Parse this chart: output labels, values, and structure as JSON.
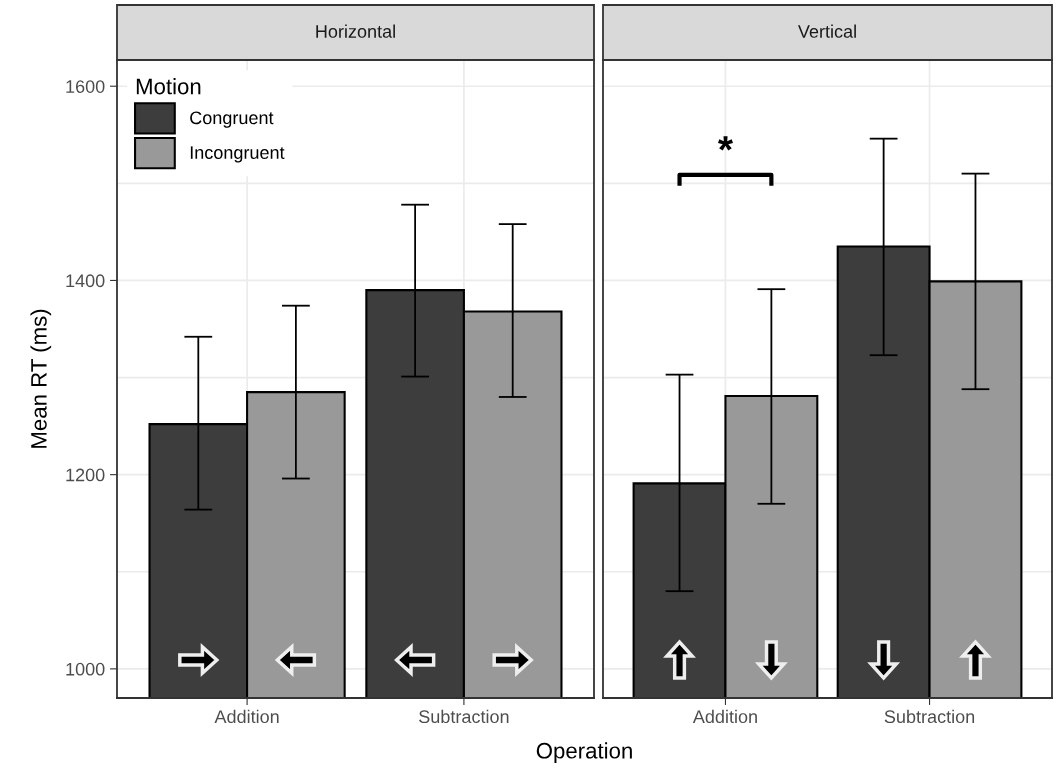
{
  "chart_data": [
    {
      "type": "bar",
      "title": "Horizontal",
      "xlabel": "Operation",
      "ylabel": "Mean RT (ms)",
      "legend_title": "Motion",
      "legend": "top left",
      "grid": true,
      "categories": [
        "Addition",
        "Subtraction"
      ],
      "ylim": [
        970,
        1627
      ],
      "yticks": [
        1000,
        {
          "value": 1100,
          "label": null
        },
        1200,
        {
          "value": 1300,
          "label": null
        },
        1400,
        {
          "value": 1500,
          "label": null
        },
        1600
      ],
      "series": [
        {
          "name": "Congruent",
          "color": "#3d3d3d",
          "values": [
            1252,
            1390
          ],
          "errors": [
            [
              1164,
              1342
            ],
            [
              1301,
              1478
            ]
          ]
        },
        {
          "name": "Incongruent",
          "color": "#999999",
          "values": [
            1285,
            1368
          ],
          "errors": [
            [
              1196,
              1374
            ],
            [
              1280,
              1458
            ]
          ]
        }
      ]
    },
    {
      "type": "bar",
      "title": "Vertical",
      "grid": true,
      "tick_labels": "x",
      "categories": [
        "Addition",
        "Subtraction"
      ],
      "ylim": [
        970,
        1627
      ],
      "yticks": [
        1000,
        {
          "value": 1100,
          "label": null
        },
        1200,
        {
          "value": 1300,
          "label": null
        },
        1400,
        {
          "value": 1500,
          "label": null
        },
        1600
      ],
      "annotations": [
        "*"
      ],
      "series": [
        {
          "color": "#3d3d3d",
          "values": [
            1191,
            1435
          ],
          "errors": [
            [
              1080,
              1303
            ],
            [
              1323,
              1546
            ]
          ]
        },
        {
          "color": "#999999",
          "values": [
            1281,
            1399
          ],
          "errors": [
            [
              1170,
              1391
            ],
            [
              1288,
              1510
            ]
          ]
        }
      ]
    }
  ]
}
